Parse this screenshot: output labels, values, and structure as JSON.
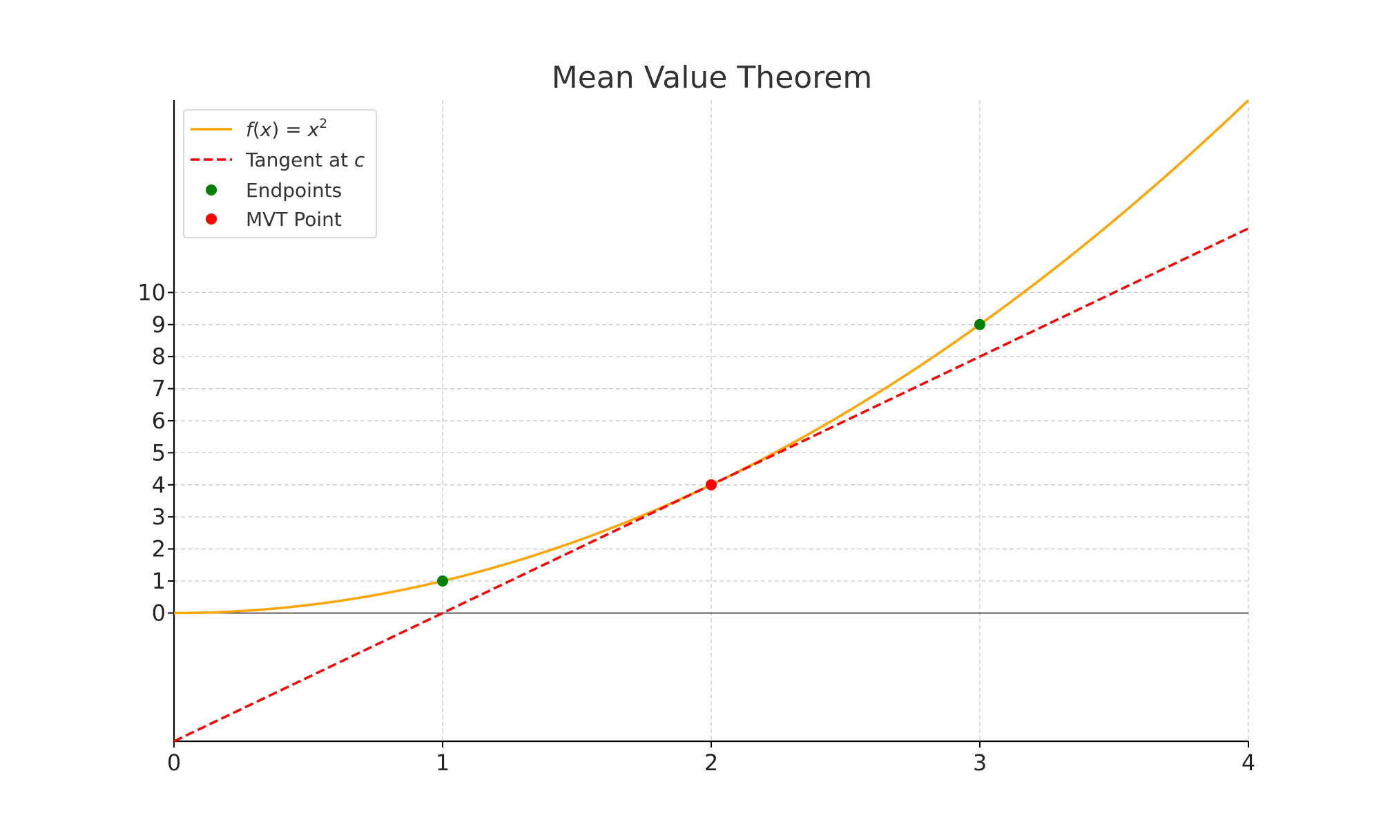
{
  "chart_data": {
    "type": "line",
    "title": "Mean Value Theorem",
    "xlabel": "",
    "ylabel": "",
    "xlim": [
      0,
      4
    ],
    "ylim": [
      -4,
      16
    ],
    "x_ticks": [
      0,
      1,
      2,
      3,
      4
    ],
    "y_ticks": [
      0,
      1,
      2,
      3,
      4,
      5,
      6,
      7,
      8,
      9,
      10
    ],
    "grid": "dashed",
    "legend_position": "top-left",
    "series": [
      {
        "name": "f(x) = x²",
        "kind": "curve",
        "function": "x^2",
        "x": [
          0,
          0.5,
          1,
          1.5,
          2,
          2.5,
          3,
          3.5,
          4
        ],
        "y": [
          0,
          0.25,
          1,
          2.25,
          4,
          6.25,
          9,
          12.25,
          16
        ],
        "color": "#FFA500",
        "style": "solid"
      },
      {
        "name": "Tangent at c",
        "kind": "line",
        "function": "4x - 4",
        "x": [
          0,
          4
        ],
        "y": [
          -4,
          12
        ],
        "color": "#FF0000",
        "style": "dashed"
      },
      {
        "name": "Endpoints",
        "kind": "points",
        "x": [
          1,
          3
        ],
        "y": [
          1,
          9
        ],
        "color": "#008000"
      },
      {
        "name": "MVT Point",
        "kind": "points",
        "x": [
          2
        ],
        "y": [
          4
        ],
        "color": "#FF0000"
      }
    ]
  },
  "legend": {
    "f_name": "f",
    "f_open": "(",
    "f_var": "x",
    "f_close": ")",
    "f_eq": " = ",
    "f_base": "x",
    "f_exp": "2",
    "tangent_prefix": "Tangent at ",
    "tangent_var": "c",
    "endpoints": "Endpoints",
    "mvt_point": "MVT Point"
  }
}
